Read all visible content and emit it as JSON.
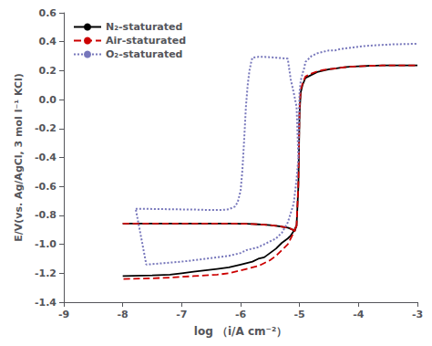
{
  "chart_data": {
    "type": "line",
    "xlabel": "log （i/A cm⁻²）",
    "ylabel": "E/V(vs. Ag/AgCl, 3 mol l⁻¹ KCl)",
    "xlim": [
      -9,
      -3
    ],
    "ylim": [
      -1.4,
      0.6
    ],
    "xticks": [
      -9,
      -8,
      -7,
      -6,
      -5,
      -4,
      -3
    ],
    "yticks": [
      -1.4,
      -1.2,
      {
        "value": -1.0,
        "label": "-1.0"
      },
      -0.8,
      -0.6,
      -0.4,
      -0.2,
      {
        "value": 0.0,
        "label": "0.0"
      },
      0.2,
      0.4,
      0.6
    ],
    "grid": false,
    "legend": "upper left",
    "series": [
      {
        "name": "N₂-staturated",
        "color": "#000000",
        "line_style": "solid",
        "x": [
          -8.0,
          -7.9,
          -7.8,
          -7.7,
          -7.6,
          -7.5,
          -7.4,
          -7.3,
          -7.2,
          -7.1,
          -7.0,
          -6.9,
          -6.8,
          -6.7,
          -6.6,
          -6.5,
          -6.4,
          -6.3,
          -6.2,
          -6.1,
          -6.0,
          -5.9,
          -5.8,
          -5.7,
          -5.6,
          -5.5,
          -5.4,
          -5.3,
          -5.2,
          -5.15,
          -5.1,
          -5.08,
          -5.05,
          -5.02,
          -5.0,
          -4.98,
          -4.95,
          -4.92,
          -4.9,
          -4.8,
          -4.7,
          -4.6,
          -4.5,
          -4.4,
          -4.3,
          -4.2,
          -4.1,
          -4.0,
          -3.9,
          -3.8,
          -3.7,
          -3.6,
          -3.5,
          -3.4,
          -3.3,
          -3.2,
          -3.1,
          -3.0
        ],
        "values": [
          -0.857,
          -0.857,
          -0.857,
          -0.857,
          -0.857,
          -0.857,
          -0.857,
          -0.857,
          -0.857,
          -0.857,
          -0.857,
          -0.857,
          -0.857,
          -0.857,
          -0.857,
          -0.857,
          -0.857,
          -0.857,
          -0.857,
          -0.857,
          -0.858,
          -0.858,
          -0.86,
          -0.862,
          -0.865,
          -0.868,
          -0.872,
          -0.878,
          -0.885,
          -0.893,
          -0.902,
          -0.908,
          -0.87,
          -0.6,
          -0.1,
          0.05,
          0.1,
          0.13,
          0.15,
          0.17,
          0.19,
          0.2,
          0.21,
          0.215,
          0.22,
          0.225,
          0.228,
          0.23,
          0.232,
          0.234,
          0.235,
          0.236,
          0.237,
          0.237,
          0.237,
          0.237,
          0.237,
          0.237
        ]
      },
      {
        "color": "#000000",
        "line_style": "solid",
        "x": [
          -5.05,
          -5.1,
          -5.15,
          -5.2,
          -5.3,
          -5.4,
          -5.5,
          -5.6,
          -5.7,
          -5.8,
          -6.0,
          -6.2,
          -6.4,
          -6.6,
          -6.8,
          -7.0,
          -7.2,
          -7.5,
          -8.0
        ],
        "values": [
          -0.87,
          -0.91,
          -0.94,
          -0.96,
          -0.99,
          -1.03,
          -1.06,
          -1.09,
          -1.1,
          -1.12,
          -1.14,
          -1.16,
          -1.17,
          -1.18,
          -1.19,
          -1.2,
          -1.21,
          -1.215,
          -1.22
        ]
      },
      {
        "name": "Air-staturated",
        "color": "#cc0000",
        "line_style": "dashed",
        "x": [
          -8.0,
          -7.9,
          -7.8,
          -7.7,
          -7.6,
          -7.5,
          -7.4,
          -7.3,
          -7.2,
          -7.1,
          -7.0,
          -6.9,
          -6.8,
          -6.7,
          -6.6,
          -6.5,
          -6.4,
          -6.3,
          -6.2,
          -6.1,
          -6.0,
          -5.9,
          -5.8,
          -5.7,
          -5.6,
          -5.5,
          -5.4,
          -5.3,
          -5.2,
          -5.15,
          -5.1,
          -5.08,
          -5.05,
          -5.02,
          -5.0,
          -4.98,
          -4.95,
          -4.92,
          -4.9,
          -4.8,
          -4.7,
          -4.6,
          -4.5,
          -4.4,
          -4.3,
          -4.2,
          -4.1,
          -4.0,
          -3.9,
          -3.8,
          -3.7,
          -3.6,
          -3.5,
          -3.4,
          -3.3,
          -3.2,
          -3.1,
          -3.0
        ],
        "values": [
          -0.857,
          -0.857,
          -0.857,
          -0.857,
          -0.857,
          -0.857,
          -0.857,
          -0.857,
          -0.857,
          -0.857,
          -0.857,
          -0.857,
          -0.857,
          -0.857,
          -0.857,
          -0.857,
          -0.857,
          -0.857,
          -0.857,
          -0.857,
          -0.858,
          -0.858,
          -0.86,
          -0.862,
          -0.865,
          -0.868,
          -0.872,
          -0.878,
          -0.885,
          -0.893,
          -0.902,
          -0.908,
          -0.87,
          -0.58,
          -0.06,
          0.07,
          0.11,
          0.14,
          0.16,
          0.18,
          0.195,
          0.205,
          0.21,
          0.215,
          0.22,
          0.225,
          0.228,
          0.23,
          0.232,
          0.234,
          0.235,
          0.236,
          0.237,
          0.237,
          0.237,
          0.237,
          0.237,
          0.237
        ]
      },
      {
        "color": "#cc0000",
        "line_style": "dashed",
        "x": [
          -5.05,
          -5.1,
          -5.15,
          -5.2,
          -5.3,
          -5.4,
          -5.5,
          -5.6,
          -5.7,
          -5.8,
          -6.0,
          -6.2,
          -6.4,
          -6.6,
          -6.8,
          -7.0,
          -7.2,
          -7.5,
          -8.0
        ],
        "values": [
          -0.87,
          -0.92,
          -0.96,
          -1.0,
          -1.04,
          -1.08,
          -1.11,
          -1.13,
          -1.15,
          -1.16,
          -1.18,
          -1.2,
          -1.21,
          -1.215,
          -1.22,
          -1.225,
          -1.23,
          -1.235,
          -1.24
        ]
      },
      {
        "name": "O₂-staturated",
        "color": "#7777bb",
        "line_style": "dotted",
        "x": [
          -7.78,
          -7.7,
          -7.6,
          -7.5,
          -7.4,
          -7.3,
          -7.2,
          -7.1,
          -7.0,
          -6.9,
          -6.8,
          -6.7,
          -6.6,
          -6.5,
          -6.4,
          -6.3,
          -6.2,
          -6.1,
          -6.05,
          -6.0,
          -5.97,
          -5.94,
          -5.91,
          -5.88,
          -5.85,
          -5.82,
          -5.8,
          -5.7,
          -5.6,
          -5.5,
          -5.4,
          -5.3,
          -5.2,
          -5.15,
          -5.1,
          -5.05,
          -5.02,
          -5.0,
          -4.98,
          -4.95,
          -4.92,
          -4.9,
          -4.8,
          -4.7,
          -4.6,
          -4.5,
          -4.4,
          -4.3,
          -4.2,
          -4.1,
          -4.0,
          -3.9,
          -3.8,
          -3.7,
          -3.6,
          -3.5,
          -3.4,
          -3.3,
          -3.2,
          -3.1,
          -3.0
        ],
        "values": [
          -0.755,
          -0.755,
          -0.755,
          -0.756,
          -0.757,
          -0.757,
          -0.758,
          -0.758,
          -0.759,
          -0.759,
          -0.76,
          -0.761,
          -0.762,
          -0.763,
          -0.763,
          -0.762,
          -0.758,
          -0.74,
          -0.71,
          -0.63,
          -0.49,
          -0.28,
          -0.05,
          0.1,
          0.2,
          0.26,
          0.29,
          0.295,
          0.295,
          0.293,
          0.29,
          0.287,
          0.283,
          0.14,
          0.05,
          -0.05,
          -0.4,
          0.05,
          0.13,
          0.18,
          0.22,
          0.26,
          0.3,
          0.32,
          0.33,
          0.34,
          0.34,
          0.35,
          0.355,
          0.36,
          0.365,
          0.37,
          0.373,
          0.376,
          0.378,
          0.38,
          0.382,
          0.383,
          0.384,
          0.385,
          0.386
        ]
      },
      {
        "color": "#7777bb",
        "line_style": "dotted",
        "x": [
          -5.02,
          -5.05,
          -5.1,
          -5.2,
          -5.3,
          -5.4,
          -5.5,
          -5.6,
          -5.7,
          -5.8,
          -5.9,
          -6.0,
          -6.2,
          -6.4,
          -6.6,
          -6.8,
          -7.0,
          -7.3,
          -7.6,
          -7.78
        ],
        "values": [
          -0.4,
          -0.55,
          -0.72,
          -0.85,
          -0.92,
          -0.96,
          -0.98,
          -1.0,
          -1.02,
          -1.03,
          -1.04,
          -1.06,
          -1.08,
          -1.09,
          -1.1,
          -1.11,
          -1.12,
          -1.13,
          -1.14,
          -0.755
        ]
      }
    ]
  }
}
